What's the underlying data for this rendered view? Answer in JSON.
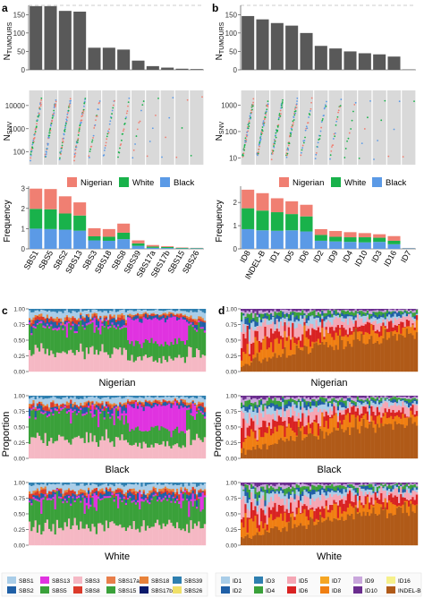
{
  "colors": {
    "nigerian": "#f07f72",
    "white": "#19b24b",
    "black": "#5b9ae6",
    "bar": "#595959",
    "panel_bg": "#d9d9d9"
  },
  "panel_letters": [
    "a",
    "b",
    "c",
    "d"
  ],
  "strip_titles": {
    "nigerian": "Nigerian",
    "black": "Black",
    "white": "White"
  },
  "chart_data": [
    {
      "panel": "a",
      "type": "bar",
      "ylabel": "N_TUMOURS",
      "ylim": [
        0,
        175
      ],
      "yticks": [
        0,
        50,
        100,
        150
      ],
      "reference_line": 175,
      "categories": [
        "SBS1",
        "SBS5",
        "SBS2",
        "SBS13",
        "SBS3",
        "SBS18",
        "SBS8",
        "SBS39",
        "SBS17a",
        "SBS17b",
        "SBS15",
        "SBS26"
      ],
      "values": [
        173,
        173,
        160,
        158,
        60,
        60,
        55,
        25,
        10,
        6,
        3,
        2
      ]
    },
    {
      "panel": "b",
      "type": "bar",
      "ylabel": "N_TUMOURS",
      "ylim": [
        0,
        175
      ],
      "yticks": [
        0,
        50,
        100,
        150
      ],
      "reference_line": 175,
      "categories": [
        "ID8",
        "INDEL-B",
        "ID1",
        "ID5",
        "ID6",
        "ID2",
        "ID9",
        "ID4",
        "ID10",
        "ID3",
        "ID16",
        "ID7"
      ],
      "values": [
        146,
        137,
        127,
        120,
        100,
        65,
        58,
        50,
        45,
        42,
        36,
        1
      ]
    },
    {
      "panel": "a",
      "type": "scatter",
      "ylabel": "N_SNV",
      "yscale": "log",
      "yticks": [
        100,
        1000,
        10000
      ],
      "ytick_labels": [
        "100",
        "1000",
        "10000"
      ],
      "grid": false
    },
    {
      "panel": "b",
      "type": "scatter",
      "ylabel": "N_SNV",
      "yscale": "log",
      "yticks": [
        10,
        100,
        1000
      ],
      "ytick_labels": [
        "10",
        "100",
        "1000"
      ],
      "grid": false
    },
    {
      "panel": "a",
      "type": "bar",
      "stacked": true,
      "ylabel": "Frequency",
      "yticks": [
        0,
        1,
        2,
        3
      ],
      "ylim": [
        0,
        3.1
      ],
      "legend": "top",
      "categories": [
        "SBS1",
        "SBS5",
        "SBS2",
        "SBS13",
        "SBS3",
        "SBS18",
        "SBS8",
        "SBS39",
        "SBS17a",
        "SBS17b",
        "SBS15",
        "SBS26"
      ],
      "series": [
        {
          "name": "Black",
          "values": [
            1.0,
            0.98,
            0.95,
            0.9,
            0.42,
            0.4,
            0.48,
            0.15,
            0.05,
            0.04,
            0.02,
            0.02
          ]
        },
        {
          "name": "White",
          "values": [
            0.98,
            0.98,
            0.8,
            0.75,
            0.2,
            0.2,
            0.32,
            0.12,
            0.06,
            0.05,
            0.03,
            0.02
          ]
        },
        {
          "name": "Nigerian",
          "values": [
            1.0,
            1.0,
            0.85,
            0.65,
            0.4,
            0.38,
            0.45,
            0.15,
            0.08,
            0.04,
            0.02,
            0.01
          ]
        }
      ]
    },
    {
      "panel": "b",
      "type": "bar",
      "stacked": true,
      "ylabel": "Frequency",
      "yticks": [
        0,
        1,
        2
      ],
      "ylim": [
        0,
        2.7
      ],
      "legend": "top",
      "categories": [
        "ID8",
        "INDEL-B",
        "ID1",
        "ID5",
        "ID6",
        "ID2",
        "ID9",
        "ID4",
        "ID10",
        "ID3",
        "ID16",
        "ID7"
      ],
      "series": [
        {
          "name": "Black",
          "values": [
            0.85,
            0.8,
            0.78,
            0.8,
            0.75,
            0.35,
            0.32,
            0.3,
            0.28,
            0.3,
            0.2,
            0.02
          ]
        },
        {
          "name": "White",
          "values": [
            0.9,
            0.85,
            0.8,
            0.7,
            0.65,
            0.25,
            0.2,
            0.2,
            0.22,
            0.18,
            0.15,
            0.01
          ]
        },
        {
          "name": "Nigerian",
          "values": [
            0.8,
            0.75,
            0.6,
            0.55,
            0.5,
            0.25,
            0.25,
            0.22,
            0.18,
            0.15,
            0.2,
            0.01
          ]
        }
      ]
    },
    {
      "panel": "c",
      "type": "area",
      "stacked": true,
      "ylabel": "Proportion",
      "yticks": [
        0,
        0.25,
        0.5,
        0.75,
        1
      ],
      "ytick_labels": [
        "0.00",
        "0.25",
        "0.50",
        "0.75",
        "1.00"
      ],
      "ylim": [
        0,
        1
      ],
      "groups": [
        "Nigerian",
        "Black",
        "White"
      ],
      "legend": "bottom",
      "legend_entries": [
        "SBS1",
        "SBS13",
        "SBS17a",
        "SBS18",
        "SBS39",
        "SBS2",
        "SBS15",
        "SBS17b",
        "SBS26",
        "SBS3",
        "SBS5",
        "SBS8"
      ]
    },
    {
      "panel": "d",
      "type": "area",
      "stacked": true,
      "ylabel": "Proportion",
      "yticks": [
        0,
        0.25,
        0.5,
        0.75,
        1
      ],
      "ytick_labels": [
        "0.00",
        "0.25",
        "0.50",
        "0.75",
        "1.00"
      ],
      "ylim": [
        0,
        1
      ],
      "groups": [
        "Nigerian",
        "Black",
        "White"
      ],
      "legend": "bottom",
      "legend_entries": [
        "ID1",
        "ID2",
        "ID3",
        "ID4",
        "ID5",
        "ID6",
        "ID7",
        "ID8",
        "ID9",
        "ID10",
        "ID16",
        "INDEL-B"
      ]
    }
  ],
  "sbs_colors": {
    "SBS1": "#a9cde8",
    "SBS13": "#e033e0",
    "SBS17a": "#e87e4a",
    "SBS18": "#e8823a",
    "SBS39": "#2e7fb0",
    "SBS2": "#1f5fa6",
    "SBS15": "#3aa13a",
    "SBS17b": "#0b1a6b",
    "SBS26": "#f0e068",
    "SBS3": "#f5b8c4",
    "SBS5": "#3aa13a",
    "SBS8": "#dc3a2a"
  },
  "id_colors": {
    "ID1": "#a9cde8",
    "ID2": "#1f5fa6",
    "ID3": "#2e7fb0",
    "ID4": "#3aa13a",
    "ID5": "#f5a6b4",
    "ID6": "#d92222",
    "ID7": "#f5a623",
    "ID8": "#f07f12",
    "ID9": "#c9a6dc",
    "ID10": "#6a2c8e",
    "ID16": "#f5f08a",
    "INDEL-B": "#b05a18"
  }
}
